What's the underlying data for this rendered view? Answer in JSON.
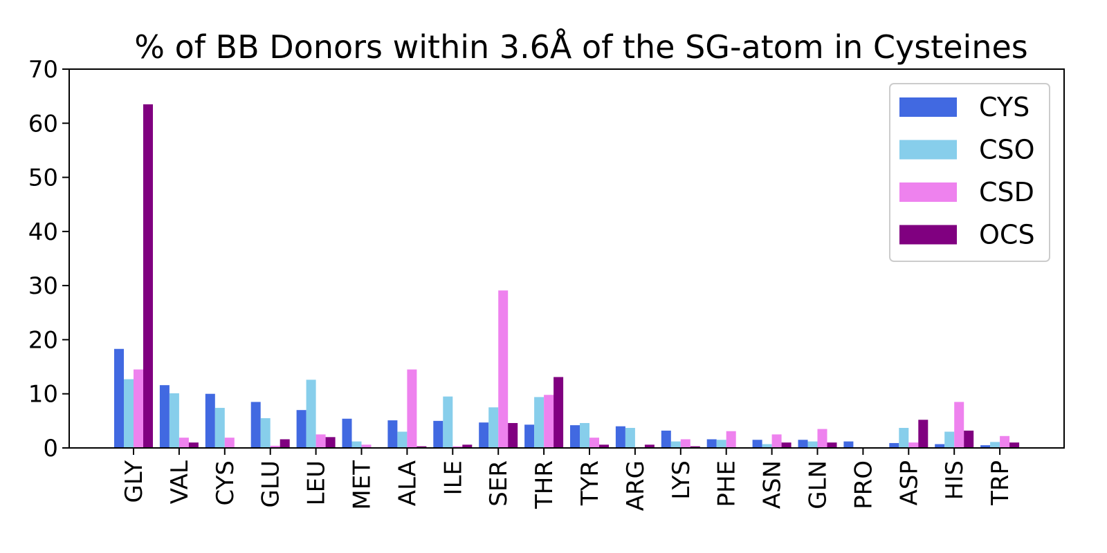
{
  "chart_data": {
    "type": "bar",
    "title": "% of BB Donors within 3.6Å of the SG-atom in Cysteines",
    "xlabel": "",
    "ylabel": "",
    "ylim": [
      0,
      70
    ],
    "yticks": [
      0,
      10,
      20,
      30,
      40,
      50,
      60,
      70
    ],
    "grid": false,
    "legend_position": "top-right",
    "categories": [
      "GLY",
      "VAL",
      "CYS",
      "GLU",
      "LEU",
      "MET",
      "ALA",
      "ILE",
      "SER",
      "THR",
      "TYR",
      "ARG",
      "LYS",
      "PHE",
      "ASN",
      "GLN",
      "PRO",
      "ASP",
      "HIS",
      "TRP"
    ],
    "series": [
      {
        "name": "CYS",
        "color": "#4169e1",
        "values": [
          18.3,
          11.6,
          10.0,
          8.5,
          7.0,
          5.4,
          5.1,
          5.0,
          4.7,
          4.3,
          4.2,
          4.0,
          3.2,
          1.6,
          1.5,
          1.5,
          1.2,
          0.9,
          0.7,
          0.5
        ]
      },
      {
        "name": "CSO",
        "color": "#87ceeb",
        "values": [
          12.7,
          10.1,
          7.4,
          5.5,
          12.6,
          1.2,
          3.0,
          9.5,
          7.5,
          9.4,
          4.6,
          3.7,
          1.2,
          1.5,
          0.7,
          1.2,
          0.0,
          3.7,
          3.0,
          1.1
        ]
      },
      {
        "name": "CSD",
        "color": "#ee82ee",
        "values": [
          14.5,
          1.9,
          1.9,
          0.4,
          2.5,
          0.6,
          14.5,
          0.3,
          29.1,
          9.8,
          1.9,
          0.0,
          1.6,
          3.1,
          2.5,
          3.5,
          0.0,
          1.0,
          8.5,
          2.2
        ]
      },
      {
        "name": "OCS",
        "color": "#800080",
        "values": [
          63.5,
          1.0,
          0.0,
          1.6,
          2.0,
          0.0,
          0.3,
          0.6,
          4.6,
          13.1,
          0.6,
          0.6,
          0.3,
          0.0,
          1.0,
          1.0,
          0.0,
          5.2,
          3.2,
          1.0
        ]
      }
    ]
  }
}
